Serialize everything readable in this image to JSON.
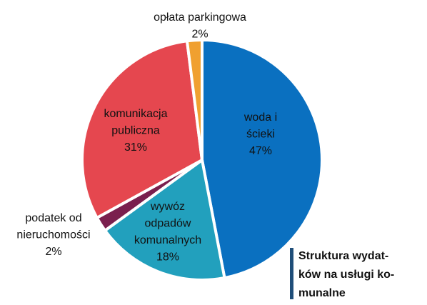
{
  "chart_data": {
    "type": "pie",
    "title": [
      "Struktura wydat-",
      "ków na usługi ko-",
      "munalne"
    ],
    "categories": [
      [
        "woda i",
        "ścieki"
      ],
      [
        "wywóz",
        "odpadów",
        "komunalnych"
      ],
      [
        "podatek od",
        "nieruchomości"
      ],
      [
        "komunikacja",
        "publiczna"
      ],
      [
        "opłata parkingowa"
      ]
    ],
    "values": [
      47,
      18,
      2,
      31,
      2
    ],
    "value_labels": [
      "47%",
      "18%",
      "2%",
      "31%",
      "2%"
    ],
    "colors": [
      "#0a70c0",
      "#22a0bd",
      "#7a1f4e",
      "#e5474f",
      "#f0a030"
    ]
  }
}
